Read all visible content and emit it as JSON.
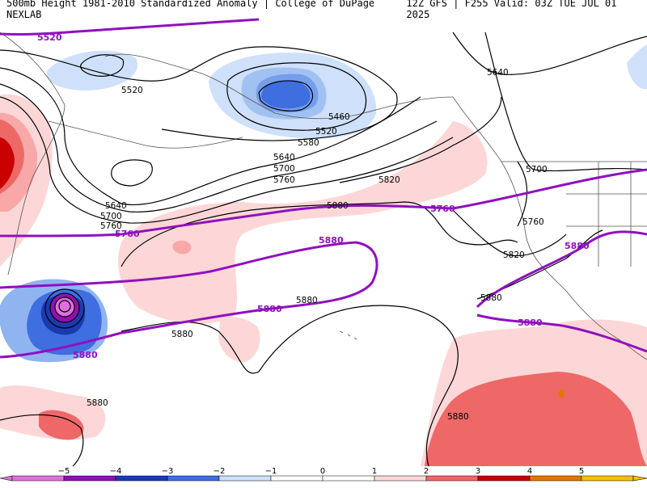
{
  "header": {
    "left": "500mb Height 1981-2010 Standardized Anomaly | College of DuPage NEXLAB",
    "right": "12Z GFS | F255 Valid: 03Z TUE JUL 01 2025"
  },
  "colors": {
    "neg5": "#e070e0",
    "neg4": "#9010b0",
    "neg3": "#1a3bb0",
    "neg2": "#3e6ee0",
    "neg1": "#8fb4f0",
    "neg05": "#cfe0fa",
    "pos05": "#fdd7d7",
    "pos1": "#f8a8a8",
    "pos2": "#ee6868",
    "pos3": "#c80000",
    "pos4": "#e07800",
    "pos5": "#f5c000",
    "purple_contour": "#9010c0",
    "black_contour": "#000000",
    "coast": "#555555"
  },
  "contour_labels": {
    "black": [
      "5520",
      "5460",
      "5520",
      "5580",
      "5640",
      "5700",
      "5760",
      "5640",
      "5700",
      "5760",
      "5820",
      "5880",
      "5640",
      "5700",
      "5760",
      "5820",
      "5880",
      "5880",
      "5880",
      "5880"
    ],
    "purple": [
      "5520",
      "5760",
      "5760",
      "5880",
      "5880",
      "5880",
      "5880",
      "5880"
    ]
  },
  "colorbar": {
    "ticks": [
      "−5",
      "−4",
      "−3",
      "−2",
      "−1",
      "0",
      "1",
      "2",
      "3",
      "4",
      "5"
    ]
  }
}
